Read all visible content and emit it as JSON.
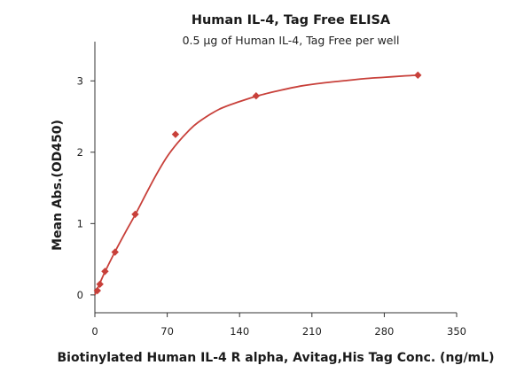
{
  "chart_data": {
    "type": "scatter",
    "title": "Human IL-4, Tag Free ELISA",
    "subtitle": "0.5 µg of Human IL-4, Tag Free per well",
    "xlabel": "Biotinylated Human IL-4 R alpha, Avitag,His Tag Conc. (ng/mL)",
    "ylabel": "Mean Abs.(OD450)",
    "xlim": [
      0,
      350
    ],
    "ylim": [
      -0.25,
      3.55
    ],
    "x_ticks": [
      0,
      70,
      140,
      210,
      280,
      350
    ],
    "y_ticks": [
      0,
      1,
      2,
      3
    ],
    "grid": false,
    "color": "#c8403a",
    "series": [
      {
        "x": [
          2.4,
          4.9,
          9.8,
          19.5,
          39,
          78,
          156,
          312.5
        ],
        "y": [
          0.06,
          0.15,
          0.33,
          0.6,
          1.13,
          2.25,
          2.79,
          3.08
        ]
      }
    ],
    "curve": {
      "x": [
        0,
        5,
        10,
        20,
        30,
        40,
        50,
        60,
        70,
        80,
        90,
        100,
        120,
        140,
        160,
        180,
        200,
        220,
        240,
        260,
        280,
        300,
        312.5
      ],
      "y": [
        0.0,
        0.17,
        0.33,
        0.62,
        0.89,
        1.15,
        1.43,
        1.7,
        1.94,
        2.13,
        2.29,
        2.42,
        2.6,
        2.71,
        2.8,
        2.87,
        2.93,
        2.97,
        3.0,
        3.03,
        3.05,
        3.07,
        3.08
      ]
    }
  }
}
